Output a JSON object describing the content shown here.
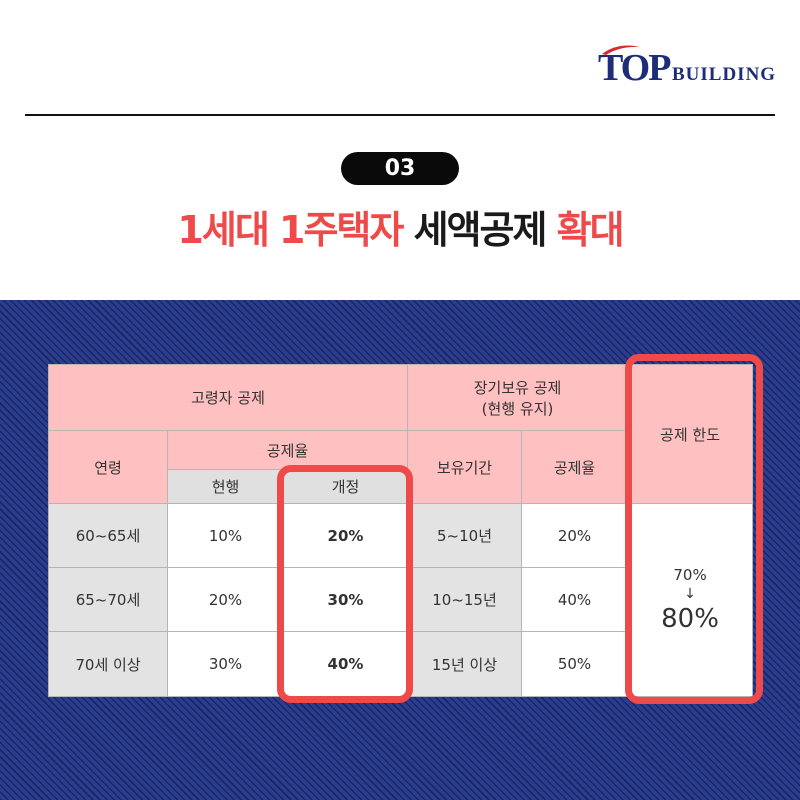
{
  "logo": {
    "brand_top": "TOP",
    "brand_building": "BUILDING"
  },
  "badge": "03",
  "title": {
    "part1": "1세대 1주택자 ",
    "part2": "세액공제 ",
    "part3": "확대"
  },
  "table": {
    "group_elderly": "고령자 공제",
    "group_longterm_line1": "장기보유 공제",
    "group_longterm_line2": "(현행 유지)",
    "limit_header": "공제 한도",
    "col_age": "연령",
    "col_rate": "공제율",
    "col_current": "현행",
    "col_revised": "개정",
    "col_period": "보유기간",
    "col_rate2": "공제율",
    "rows": [
      {
        "age": "60~65세",
        "current": "10%",
        "revised": "20%",
        "period": "5~10년",
        "rate": "20%"
      },
      {
        "age": "65~70세",
        "current": "20%",
        "revised": "30%",
        "period": "10~15년",
        "rate": "40%"
      },
      {
        "age": "70세 이상",
        "current": "30%",
        "revised": "40%",
        "period": "15년 이상",
        "rate": "50%"
      }
    ],
    "limit_from": "70%",
    "limit_arrow": "↓",
    "limit_to": "80%"
  },
  "colors": {
    "accent_red": "#ee4a4a",
    "header_pink": "#fec0c0",
    "panel_navy": "#2b3d8f",
    "brand_navy": "#1e2d7a"
  }
}
